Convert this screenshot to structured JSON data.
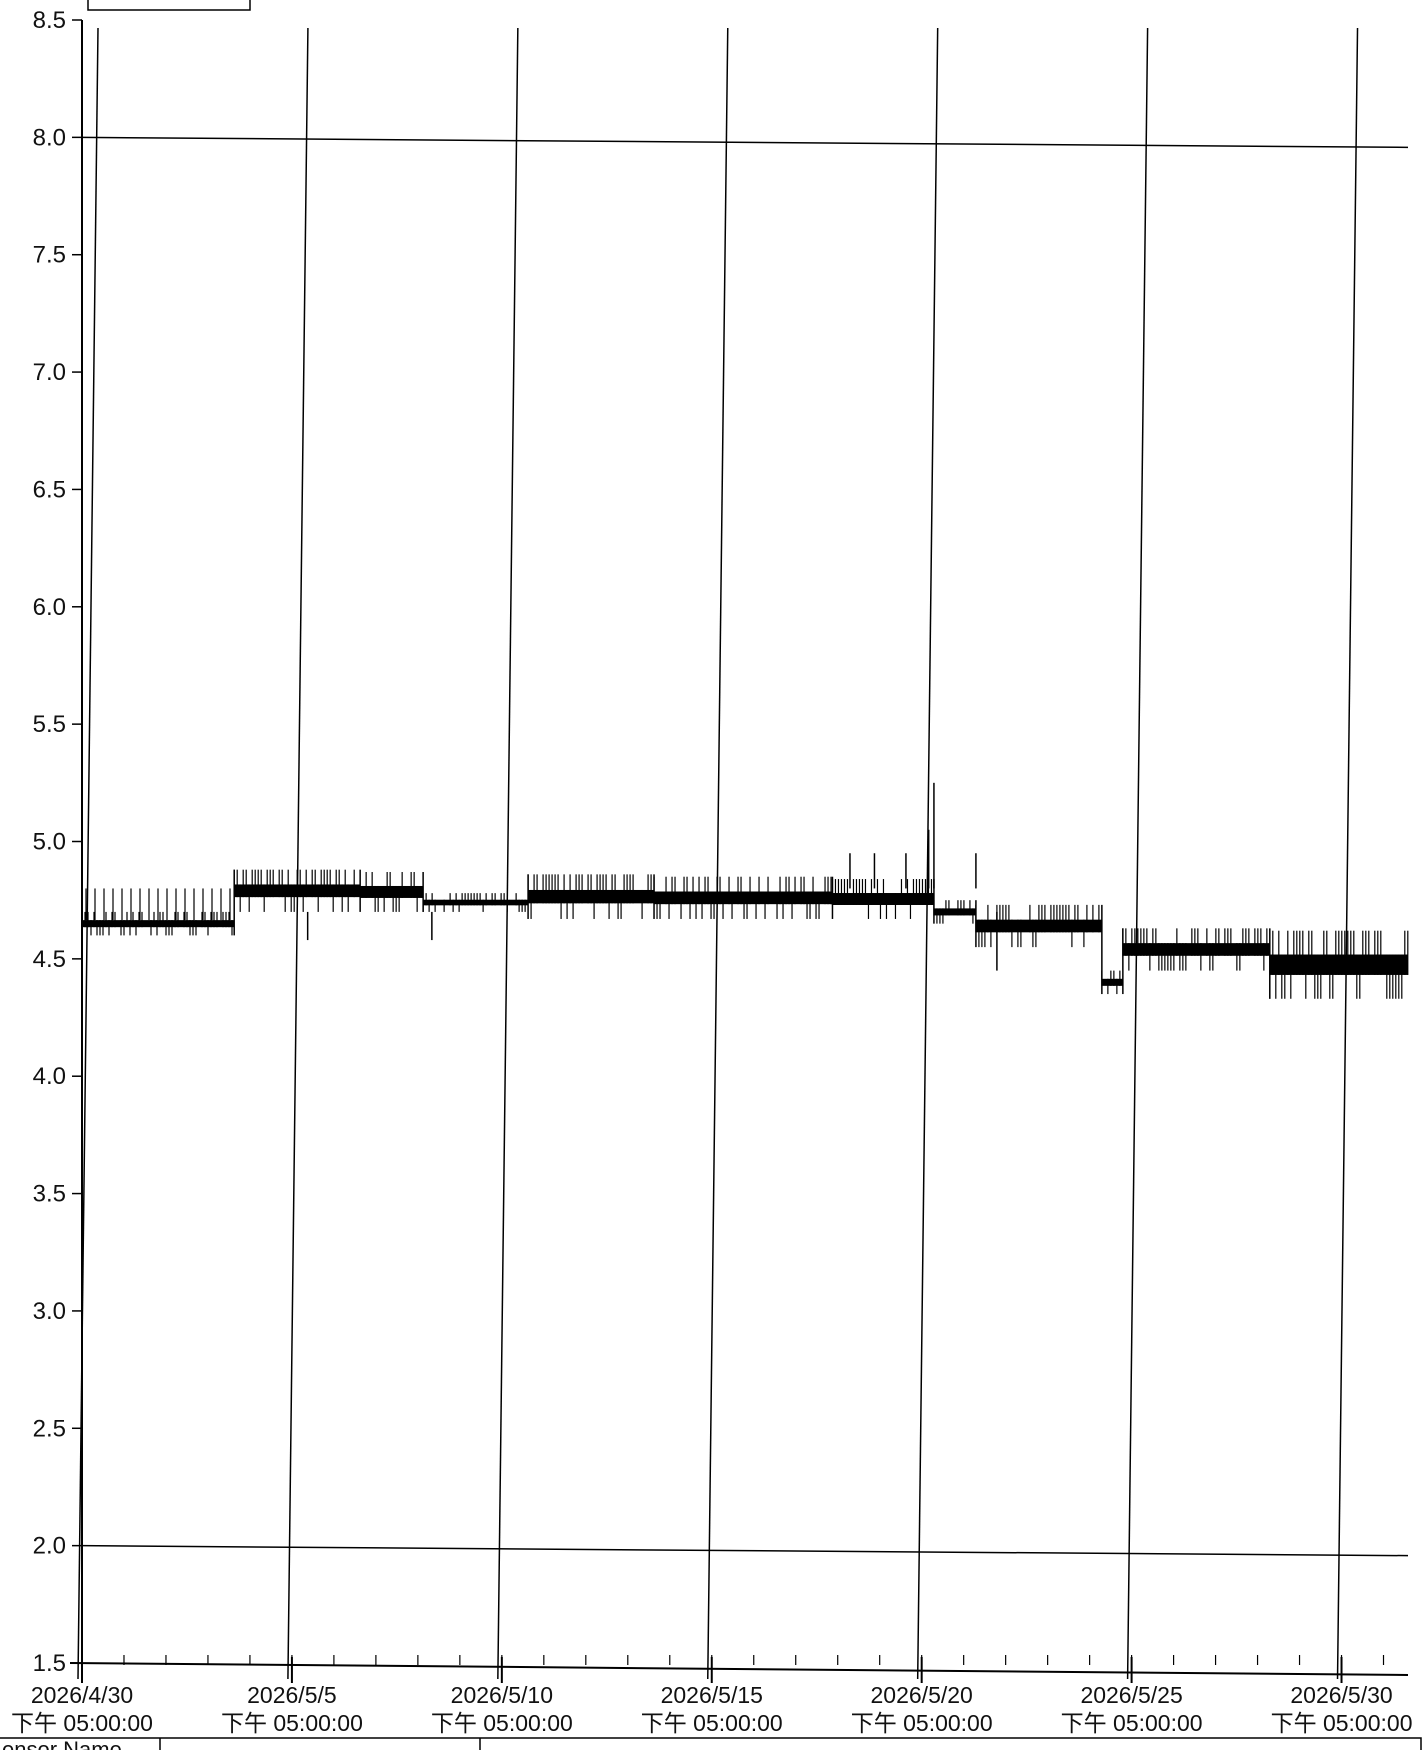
{
  "chart_data": {
    "type": "line",
    "title": "",
    "xlabel": "",
    "ylabel": "",
    "ylim": [
      1.5,
      8.5
    ],
    "yticks": [
      "1.5",
      "2.0",
      "2.5",
      "3.0",
      "3.5",
      "4.0",
      "4.5",
      "5.0",
      "5.5",
      "6.0",
      "6.5",
      "7.0",
      "7.5",
      "8.0",
      "8.5"
    ],
    "xlim": [
      "2026-04-30T17:00",
      "2026-06-01T07:00"
    ],
    "x_ticks": [
      {
        "date": "2026/4/30",
        "time": "下午 05:00:00"
      },
      {
        "date": "2026/5/5",
        "time": "下午 05:00:00"
      },
      {
        "date": "2026/5/10",
        "time": "下午 05:00:00"
      },
      {
        "date": "2026/5/15",
        "time": "下午 05:00:00"
      },
      {
        "date": "2026/5/20",
        "time": "下午 05:00:00"
      },
      {
        "date": "2026/5/25",
        "time": "下午 05:00:00"
      },
      {
        "date": "2026/5/30",
        "time": "下午 05:00:00"
      }
    ],
    "horizontal_lines": [
      2.0,
      8.0
    ],
    "grid": "vertical at date ticks",
    "series": [
      {
        "color": "#000000",
        "bands": [
          {
            "start": "2026-04-30T17:00",
            "end": "2026-05-04T08:00",
            "low": 4.6,
            "high": 4.7,
            "spikes_to": 4.8
          },
          {
            "start": "2026-05-04T08:00",
            "end": "2026-05-07T08:00",
            "low": 4.7,
            "high": 4.88
          },
          {
            "start": "2026-05-07T08:00",
            "end": "2026-05-08T20:00",
            "low": 4.7,
            "high": 4.87
          },
          {
            "start": "2026-05-08T20:00",
            "end": "2026-05-11T08:00",
            "low": 4.7,
            "high": 4.78
          },
          {
            "start": "2026-05-11T08:00",
            "end": "2026-05-14T08:00",
            "low": 4.67,
            "high": 4.86
          },
          {
            "start": "2026-05-14T08:00",
            "end": "2026-05-18T14:00",
            "low": 4.67,
            "high": 4.85
          },
          {
            "start": "2026-05-18T14:00",
            "end": "2026-05-21T00:00",
            "low": 4.67,
            "high": 4.84
          },
          {
            "start": "2026-05-21T00:00",
            "end": "2026-05-22T00:00",
            "low": 4.65,
            "high": 4.75
          },
          {
            "start": "2026-05-22T00:00",
            "end": "2026-05-25T00:00",
            "low": 4.55,
            "high": 4.73
          },
          {
            "start": "2026-05-25T00:00",
            "end": "2026-05-25T12:00",
            "low": 4.35,
            "high": 4.45
          },
          {
            "start": "2026-05-25T12:00",
            "end": "2026-05-29T00:00",
            "low": 4.45,
            "high": 4.63
          },
          {
            "start": "2026-05-29T00:00",
            "end": "2026-06-01T07:00",
            "low": 4.33,
            "high": 4.62
          }
        ],
        "spikes": [
          {
            "x": "2026-05-21T00:00",
            "y": 5.25
          },
          {
            "x": "2026-05-20T21:00",
            "y": 5.05
          },
          {
            "x": "2026-05-22T00:00",
            "y": 4.95
          },
          {
            "x": "2026-05-19T14:00",
            "y": 4.95
          },
          {
            "x": "2026-05-20T08:00",
            "y": 4.95
          },
          {
            "x": "2026-05-19T00:00",
            "y": 4.95
          },
          {
            "x": "2026-05-09T01:00",
            "y": 4.58
          },
          {
            "x": "2026-05-06T02:00",
            "y": 4.58
          },
          {
            "x": "2026-05-22T12:00",
            "y": 4.45
          }
        ]
      }
    ]
  },
  "footer": {
    "sensor_name_partial": "ensor Name"
  }
}
